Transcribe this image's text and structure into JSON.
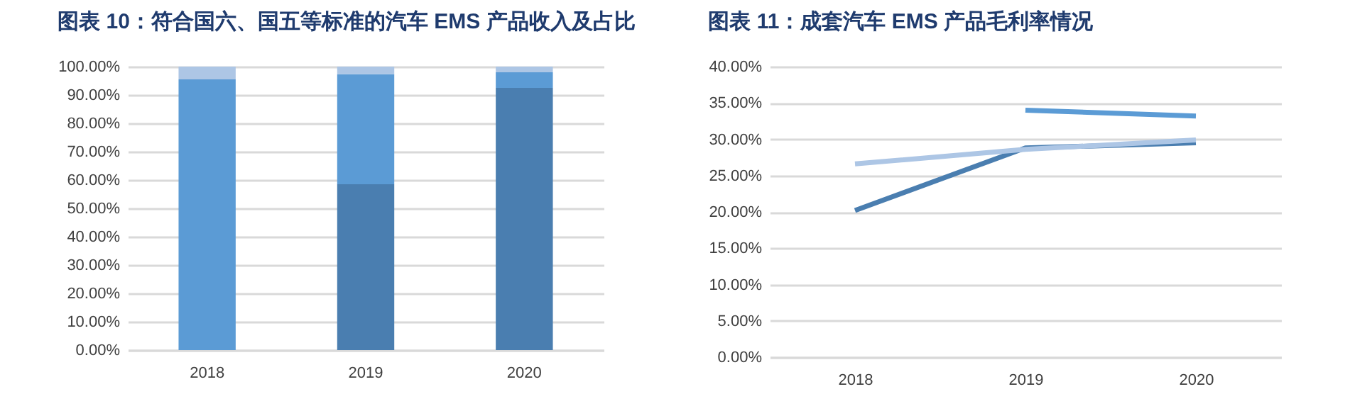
{
  "chart_data": [
    {
      "type": "bar",
      "title": "图表 10：符合国六、国五等标准的汽车 EMS 产品收入及占比",
      "stacked": true,
      "categories": [
        "2018",
        "2019",
        "2020"
      ],
      "series": [
        {
          "color": "#4a7eb0",
          "values": [
            0,
            58.5,
            92.5
          ]
        },
        {
          "color": "#5b9bd5",
          "values": [
            95.5,
            38.8,
            5.5
          ]
        },
        {
          "color": "#adc6e5",
          "values": [
            4.5,
            2.7,
            2.0
          ]
        }
      ],
      "ylim": [
        0,
        100
      ],
      "yticks": [
        {
          "value": 0,
          "label": "0.00%"
        },
        {
          "value": 10,
          "label": "10.00%"
        },
        {
          "value": 20,
          "label": "20.00%"
        },
        {
          "value": 30,
          "label": "30.00%"
        },
        {
          "value": 40,
          "label": "40.00%"
        },
        {
          "value": 50,
          "label": "50.00%"
        },
        {
          "value": 60,
          "label": "60.00%"
        },
        {
          "value": 70,
          "label": "70.00%"
        },
        {
          "value": 80,
          "label": "80.00%"
        },
        {
          "value": 90,
          "label": "90.00%"
        },
        {
          "value": 100,
          "label": "100.00%"
        }
      ],
      "grid": "y"
    },
    {
      "type": "line",
      "title": "图表 11：成套汽车 EMS 产品毛利率情况",
      "categories": [
        "2018",
        "2019",
        "2020"
      ],
      "series": [
        {
          "color": "#4a7eb0",
          "values": [
            20.2,
            28.8,
            29.5
          ]
        },
        {
          "color": "#5b9bd5",
          "values": [
            null,
            34.0,
            33.2
          ]
        },
        {
          "color": "#adc6e5",
          "values": [
            26.6,
            28.6,
            29.9
          ]
        }
      ],
      "ylim": [
        0,
        40
      ],
      "yticks": [
        {
          "value": 0,
          "label": "0.00%"
        },
        {
          "value": 5,
          "label": "5.00%"
        },
        {
          "value": 10,
          "label": "10.00%"
        },
        {
          "value": 15,
          "label": "15.00%"
        },
        {
          "value": 20,
          "label": "20.00%"
        },
        {
          "value": 25,
          "label": "25.00%"
        },
        {
          "value": 30,
          "label": "30.00%"
        },
        {
          "value": 35,
          "label": "35.00%"
        },
        {
          "value": 40,
          "label": "40.00%"
        }
      ],
      "grid": "y",
      "line_style": "solid",
      "marker": "none"
    }
  ]
}
